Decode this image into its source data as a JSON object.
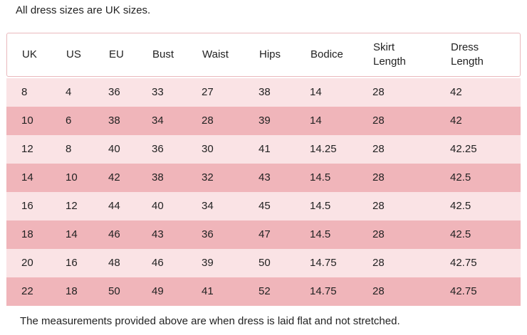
{
  "note": "All dress sizes are UK sizes.",
  "table": {
    "headers": [
      "UK",
      "US",
      "EU",
      "Bust",
      "Waist",
      "Hips",
      "Bodice",
      "Skirt Length",
      "Dress Length"
    ],
    "rows": [
      [
        "8",
        "4",
        "36",
        "33",
        "27",
        "38",
        "14",
        "28",
        "42"
      ],
      [
        "10",
        "6",
        "38",
        "34",
        "28",
        "39",
        "14",
        "28",
        "42"
      ],
      [
        "12",
        "8",
        "40",
        "36",
        "30",
        "41",
        "14.25",
        "28",
        "42.25"
      ],
      [
        "14",
        "10",
        "42",
        "38",
        "32",
        "43",
        "14.5",
        "28",
        "42.5"
      ],
      [
        "16",
        "12",
        "44",
        "40",
        "34",
        "45",
        "14.5",
        "28",
        "42.5"
      ],
      [
        "18",
        "14",
        "46",
        "43",
        "36",
        "47",
        "14.5",
        "28",
        "42.5"
      ],
      [
        "20",
        "16",
        "48",
        "46",
        "39",
        "50",
        "14.75",
        "28",
        "42.75"
      ],
      [
        "22",
        "18",
        "50",
        "49",
        "41",
        "52",
        "14.75",
        "28",
        "42.75"
      ]
    ]
  },
  "footer": "The measurements provided above are when dress is laid flat and not stretched."
}
